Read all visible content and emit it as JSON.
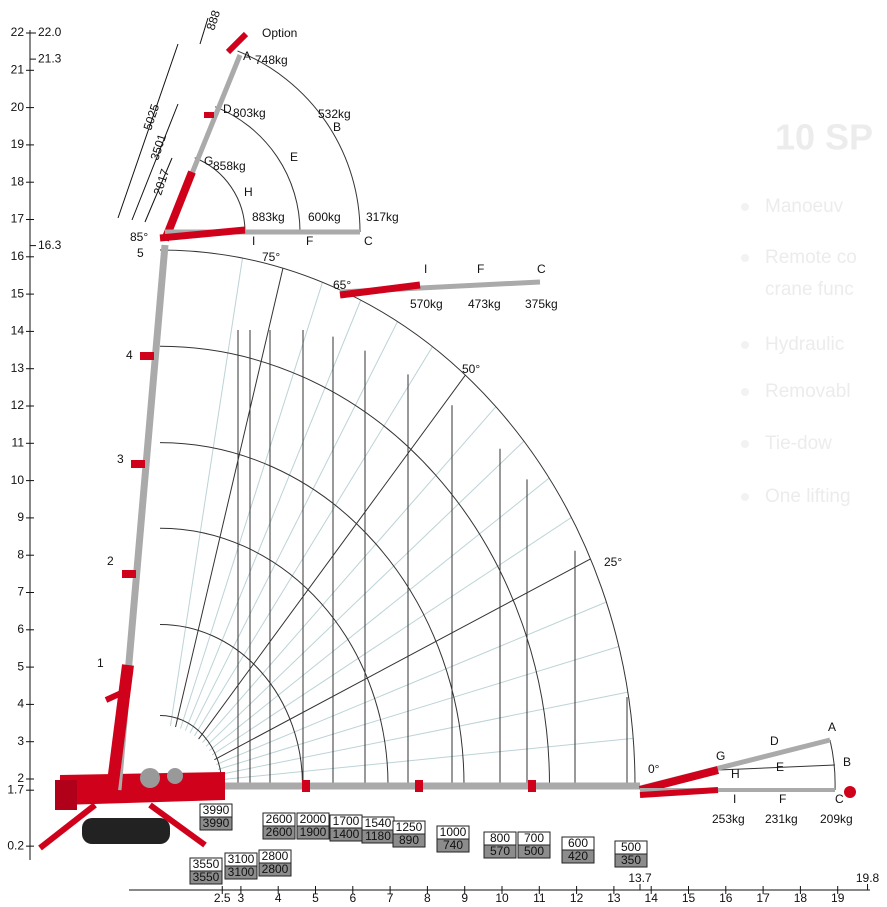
{
  "y_axis": {
    "ticks": [
      22,
      21,
      20,
      19,
      18,
      17,
      16,
      15,
      14,
      13,
      12,
      11,
      10,
      9,
      8,
      7,
      6,
      5,
      4,
      3,
      2,
      1.7,
      0.2
    ]
  },
  "right_heights": [
    {
      "value": 22,
      "label": "22.0"
    },
    21.3,
    16.3
  ],
  "x_axis": {
    "ticks": [
      2.5,
      3,
      4,
      5,
      6,
      7,
      8,
      9,
      10,
      11,
      12,
      13,
      14,
      15,
      16,
      17,
      18,
      19
    ],
    "marks": [
      13.7,
      19.8
    ]
  },
  "capacity": [
    {
      "top": 3990,
      "bottom": 3990
    },
    {
      "top": 3550,
      "bottom": 3550
    },
    {
      "top": 3100,
      "bottom": 3100
    },
    {
      "top": 2800,
      "bottom": 2800
    },
    {
      "top": 2600,
      "bottom": 2600
    },
    {
      "top": 2000,
      "bottom": 1900
    },
    {
      "top": 1700,
      "bottom": 1400
    },
    {
      "top": 1540,
      "bottom": 1180
    },
    {
      "top": 1250,
      "bottom": 890
    },
    {
      "top": 1000,
      "bottom": 740
    },
    {
      "top": 800,
      "bottom": 570
    },
    {
      "top": 700,
      "bottom": 500
    },
    {
      "top": 600,
      "bottom": 420
    },
    {
      "top": 500,
      "bottom": 350
    }
  ],
  "option": "Option",
  "dimensions": [
    "888",
    "5025",
    "3501",
    "2017"
  ],
  "angles": [
    "85°",
    "75°",
    "65°",
    "50°",
    "25°",
    "0°"
  ],
  "boom_sections": [
    "1",
    "2",
    "3",
    "4",
    "5"
  ],
  "jib_top": {
    "points": [
      "A",
      "D",
      "G",
      "B",
      "E",
      "H",
      "I",
      "F",
      "C"
    ],
    "loads": [
      "748kg",
      "803kg",
      "858kg",
      "532kg",
      "883kg",
      "600kg",
      "317kg"
    ]
  },
  "jib_65": {
    "points": [
      "I",
      "F",
      "C"
    ],
    "loads": [
      "570kg",
      "473kg",
      "375kg"
    ]
  },
  "jib_0": {
    "points": [
      "A",
      "D",
      "G",
      "B",
      "E",
      "H",
      "I",
      "F",
      "C"
    ],
    "loads": [
      "253kg",
      "231kg",
      "209kg"
    ]
  },
  "background_text": [
    "10 SP",
    "Manoeuv",
    "Remote co",
    "crane func",
    "Hydraulic",
    "Removabl",
    "Tie-dow",
    "One lifting"
  ]
}
